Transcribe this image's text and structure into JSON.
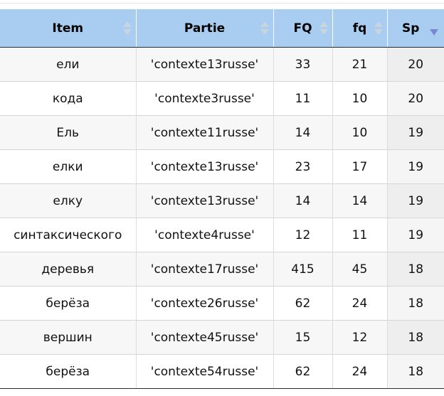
{
  "table": {
    "headers": [
      {
        "label": "Item",
        "sort": "both"
      },
      {
        "label": "Partie",
        "sort": "both"
      },
      {
        "label": "FQ",
        "sort": "both"
      },
      {
        "label": "fq",
        "sort": "both"
      },
      {
        "label": "Sp",
        "sort": "desc"
      }
    ],
    "rows": [
      [
        "ели",
        "'contexte13russe'",
        "33",
        "21",
        "20"
      ],
      [
        "кода",
        "'contexte3russe'",
        "11",
        "10",
        "20"
      ],
      [
        "Ель",
        "'contexte11russe'",
        "14",
        "10",
        "19"
      ],
      [
        "елки",
        "'contexte13russe'",
        "23",
        "17",
        "19"
      ],
      [
        "елку",
        "'contexte13russe'",
        "14",
        "14",
        "19"
      ],
      [
        "синтаксического",
        "'contexte4russe'",
        "12",
        "11",
        "19"
      ],
      [
        "деревья",
        "'contexte17russe'",
        "415",
        "45",
        "18"
      ],
      [
        "берёза",
        "'contexte26russe'",
        "62",
        "24",
        "18"
      ],
      [
        "вершин",
        "'contexte45russe'",
        "15",
        "12",
        "18"
      ],
      [
        "берёза",
        "'contexte54russe'",
        "62",
        "24",
        "18"
      ]
    ]
  },
  "colors": {
    "header_bg": "#a9cdf1",
    "row_odd_bg": "#f7f7f7",
    "row_even_bg": "#ffffff",
    "sort_indicator_inactive": "#c9d4de",
    "sort_indicator_active": "#7a86d4"
  }
}
